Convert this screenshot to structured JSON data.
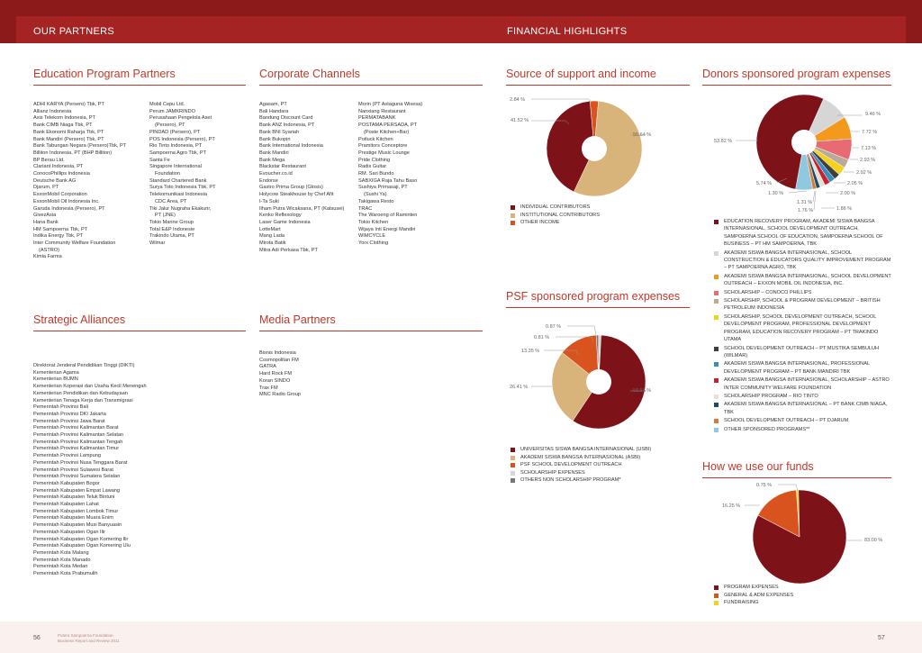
{
  "header": {
    "left_title": "OUR PARTNERS",
    "right_title": "FINANCIAL HIGHLIGHTS"
  },
  "education": {
    "title": "Education Program Partners",
    "col1": [
      "ADHI KARYA (Persero) Tbk, PT",
      "Allianz Indonesia",
      "Axis Telekom Indonesia, PT",
      "Bank CIMB Niaga Tbk, PT",
      "Bank Ekonomi Raharja Tbk, PT",
      "Bank Mandiri (Persero) Tbk, PT",
      "Bank Tabungan Negara (Persero)Tbk, PT",
      "Billiton Indonesia, PT (BHP Billiton)",
      "BP Berau Ltd.",
      "Clariant Indonesia, PT",
      "ConocoPhillips Indonesia",
      "Deutsche Bank AG",
      "Djarum, PT",
      "ExxonMobil Corporation",
      "ExxonMobil Oil Indonesia Inc.",
      "Garuda Indonesia (Persero), PT",
      "GivezAsia",
      "Hana Bank",
      "HM Sampoerna Tbk, PT",
      "Indika Energy Tbk, PT",
      "Inter Community Welfare Foundation",
      "(ASTRO)",
      "Kimia Farma"
    ],
    "col2": [
      "Mobil Cepu Ltd.",
      "Perum JAMKRINDO",
      "Perusahaan Pengelola Aset",
      "(Persero), PT",
      "PINDAD (Persero), PT",
      "POS Indonesia (Persero), PT",
      "Rio Tinto Indonesia, PT",
      "Sampoerna Agro Tbk, PT",
      "Santa Fe",
      "Singapore International",
      "Foundation",
      "Standard Chartered Bank",
      "Surya Toto Indonesia Tbk, PT",
      "Telekomunikasi Indonesia",
      "CDC Area, PT",
      "Tiki Jalur Nugraha Ekakurir,",
      "PT (JNE)",
      "Tokio Marine Group",
      "Total E&P Indonesie",
      "Trakindo Utama, PT",
      "Wilmar"
    ]
  },
  "corporate": {
    "title": "Corporate Channels",
    "col1": [
      "Agasam, PT",
      "Bali Handara",
      "Bandung Discount Card",
      "Bank ANZ Indonesia, PT",
      "Bank BNI Syariah",
      "Bank Bukopin",
      "Bank International Indonesia",
      "Bank Mandiri",
      "Bank Mega",
      "Blackstar Restaurant",
      "Evoucher.co.id",
      "Endorse",
      "Gastro Prima Group (Glosis)",
      "Holycow Steakhouse by Chef Afit",
      "I-Ta Suki",
      "Ilham Putra Wicaksana, PT (Katsusei)",
      "Kenko Reflexology",
      "Laser Game Indonesia",
      "LotteMart",
      "Mang Lada",
      "Mirota Batik",
      "Mitra Adi Perkasa Tbk, PT"
    ],
    "col2": [
      "Morin (PT Astaguna Wisesa)",
      "Nanxiang Restaurant",
      "PERMATABANK",
      "POSTAMA PERSADA, PT",
      "(Poste Kitchen+Bar)",
      "Potluck Kitchen",
      "Pramitors Conceptore",
      "Prestige Music Lounge",
      "Pride Clothing",
      "Radix Guitar",
      "RM. Sari Bundo",
      "SABXIGA Raja Tahu Baso",
      "Sushiya Primasaji, PT",
      "(Sushi Ya)",
      "Takigawa Resto",
      "TRAC",
      "The Waroeng of Raminten",
      "Tokio Kitchen",
      "Wijaya Inti Energi Mandiri",
      "WIMCYCLE",
      "Yorx Clothing"
    ]
  },
  "strategic": {
    "title": "Strategic Alliances",
    "items": [
      "Direktorat Jenderal Pendidikan Tinggi (DIKTI)",
      "Kementerian Agama",
      "Kementerian BUMN",
      "Kementerian Koperasi dan Usaha Kecil Menengah",
      "Kementerian Pendidikan dan Kebudayaan",
      "Kementerian Tenaga Kerja dan Transmigrasi",
      "Pemerintah Provinsi Bali",
      "Pemerintah Provinsi DKI Jakarta",
      "Pemerintah Provinsi Jawa Barat",
      "Pemerintah Provinsi Kalimantan Barat",
      "Pemerintah Provinsi Kalimantan Selatan",
      "Pemerintah Provinsi Kalimantan Tengah",
      "Pemerintah Provinsi Kalimantan Timur",
      "Pemerintah Provinsi Lampung",
      "Pemerintah Provinsi Nusa Tenggara Barat",
      "Pemerintah Provinsi Sulawesi Barat",
      "Pemerintah Provinsi Sumatera Selatan",
      "Pemerintah Kabupaten Bogor",
      "Pemerintah Kabupaten Empat Lawang",
      "Pemerintah Kabupaten Teluk Bintuni",
      "Pemerintah Kabupaten Lahat",
      "Pemerintah Kabupaten Lombok Timur",
      "Pemerintah Kabupaten Muara Enim",
      "Pemerintah Kabupaten Musi Banyuasin",
      "Pemerintah Kabupaten Ogan Ilir",
      "Pemerintah Kabupaten Ogan Komering Ilir",
      "Pemerintah Kabupaten Ogan Komering Ulu",
      "Pemerintah Kota Malang",
      "Pemerintah Kota Manado",
      "Pemerintah Kota Medan",
      "Pemerintah Kota Prabumulih"
    ]
  },
  "media": {
    "title": "Media Partners",
    "items": [
      "Bisnis Indonesia",
      "Cosmopolitan FM",
      "GATRA",
      "Hard Rock FM",
      "Koran SINDO",
      "Trax FM",
      "MNC Radio Group"
    ]
  },
  "source_chart": {
    "title": "Source of support and income",
    "slices": [
      {
        "label": "INDIVIDUAL CONTRIBUTORS",
        "value": 41.52,
        "text": "41.52 %",
        "color": "#7d1219"
      },
      {
        "label": "INSTITUTIONAL CONTRIBUTORS",
        "value": 55.64,
        "text": "55.64 %",
        "color": "#d8b47a"
      },
      {
        "label": "OTHER INCOME",
        "value": 2.84,
        "text": "2.84 %",
        "color": "#d9531e"
      }
    ]
  },
  "psf_chart": {
    "title": "PSF sponsored program expenses",
    "slices": [
      {
        "label": "UNIVERSITAS SISWA BANGSA INTERNASIONAL (USBI)",
        "value": 58.56,
        "text": "58.56 %",
        "color": "#7d1219"
      },
      {
        "label": "AKADEMI SISWA BANGSA INTERNASIONAL (ASBI)",
        "value": 26.41,
        "text": "26.41 %",
        "color": "#d8b47a"
      },
      {
        "label": "PSF SCHOOL DEVELOPMENT OUTREACH",
        "value": 13.35,
        "text": "13.35 %",
        "color": "#d9531e"
      },
      {
        "label": "SCHOLARSHIP EXPENSES",
        "value": 0.87,
        "text": "0.87 %",
        "color": "#d6d6d6"
      },
      {
        "label": "OTHERS NON SCHOLARSHIP PROGRAM*",
        "value": 0.81,
        "text": "0.81 %",
        "color": "#777777"
      }
    ]
  },
  "donors_chart": {
    "title": "Donors sponsored program expenses",
    "slices": [
      {
        "label": "EDUCATION RECOVERY PROGRAM, AKADEMI SISWA BANGSA INTERNASIONAL, SCHOOL DEVELOPMENT OUTREACH, SAMPOERNA SCHOOL OF EDUCATION, SAMPOERNA SCHOOL OF BUSINESS – PT HM SAMPOERNA, TBK",
        "value": 53.82,
        "text": "53.82 %",
        "color": "#7d1219"
      },
      {
        "label": "AKADEMI SISWA BANGSA INTERNASIONAL, SCHOOL CONSTRUCTION & EDUCATORS QUALITY IMPROVEMENT PROGRAM – PT SAMPOERNA AGRO, TBK",
        "value": 9.46,
        "text": "9.46 %",
        "color": "#d6d6d6"
      },
      {
        "label": "AKADEMI SISWA BANGSA INTERNASIONAL, SCHOOL DEVELOPMENT OUTREACH – EXXON MOBIL OIL INDONESIA, INC.",
        "value": 7.72,
        "text": "7.72 %",
        "color": "#f39a1e"
      },
      {
        "label": "SCHOLARSHIP – CONOCO PHILLIPS",
        "value": 7.13,
        "text": "7.13 %",
        "color": "#e86a72"
      },
      {
        "label": "SCHOLARSHIP, SCHOOL & PROGRAM DEVELOPMENT – BRITISH PETROLEUM INDONESIA",
        "value": 2.93,
        "text": "2.93 %",
        "color": "#b8ab9a"
      },
      {
        "label": "SCHOLARSHIP, SCHOOL DEVELOPMENT OUTREACH, SCHOOL DEVELOPMENT PROGRAM, PROFESSIONAL DEVELOPMENT PROGRAM, EDUCATION RECOVERY PROGRAM – PT TRAKINDO UTAMA",
        "value": 2.92,
        "text": "2.92 %",
        "color": "#f2d21b"
      },
      {
        "label": "SCHOOL DEVELOPMENT OUTREACH – PT MUSTIKA SEMBULUH (WILMAR)",
        "value": 2.05,
        "text": "2.05 %",
        "color": "#3f3f3f"
      },
      {
        "label": "AKADEMI SISWA BANGSA INTERNASIONAL, PROFESSIONAL DEVELOPMENT PROGRAM – PT BANK MANDIRI TBK",
        "value": 2.0,
        "text": "2.00 %",
        "color": "#3a8fc2"
      },
      {
        "label": "AKADEMI SISWA BANGSA INTERNASIONAL, SCHOLARSHIP – ASTRO INTER COMMUNITY WELFARE FOUNDATION",
        "value": 1.86,
        "text": "1.86 %",
        "color": "#c8202e"
      },
      {
        "label": "SCHOLARSHIP PROGRAM – RIO TINTO",
        "value": 1.76,
        "text": "1.76 %",
        "color": "#e5e1d2"
      },
      {
        "label": "AKADEMI SISWA BANGSA INTERNASIONAL – PT BANK CIMB NIAGA, TBK",
        "value": 1.31,
        "text": "1.31 %",
        "color": "#1e4a6e"
      },
      {
        "label": "SCHOOL DEVELOPMENT OUTREACH – PT DJARUM",
        "value": 1.3,
        "text": "1.30 %",
        "color": "#d87a3c"
      },
      {
        "label": "OTHER SPONSORED PROGRAMS**",
        "value": 5.74,
        "text": "5.74 %",
        "color": "#8ec9e0"
      }
    ]
  },
  "funds_chart": {
    "title": "How we use our funds",
    "slices": [
      {
        "label": "PROGRAM EXPENSES",
        "value": 83.0,
        "text": "83.00 %",
        "color": "#7d1219"
      },
      {
        "label": "GENERAL & ADM EXPENSES",
        "value": 16.25,
        "text": "16.25 %",
        "color": "#d9531e"
      },
      {
        "label": "FUNDRAISING",
        "value": 0.75,
        "text": "0.75 %",
        "color": "#f2d21b"
      }
    ]
  },
  "footer": {
    "left_page": "56",
    "right_page": "57",
    "note_line1": "Putera Sampoerna Foundation",
    "note_line2": "Business Report and Review 2011"
  }
}
